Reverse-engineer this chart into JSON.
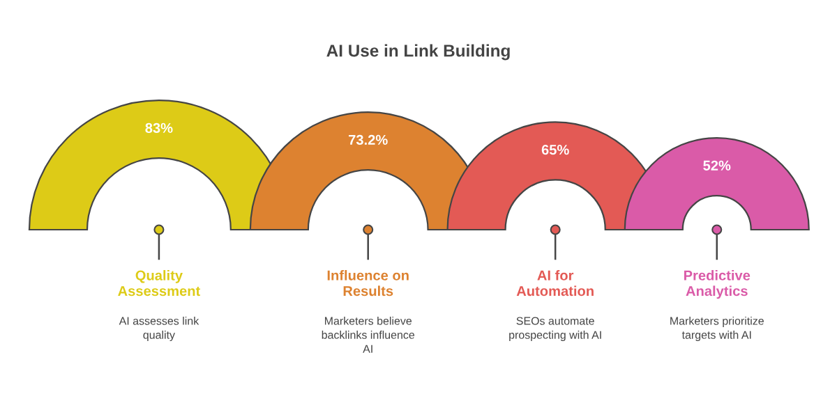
{
  "chart_data": {
    "type": "other",
    "title": "AI Use in Link Building",
    "categories": [
      "Quality\nAssessment",
      "Influence on\nResults",
      "AI for\nAutomation",
      "Predictive\nAnalytics"
    ],
    "values": [
      83,
      73.2,
      65,
      52
    ],
    "value_labels": [
      "83%",
      "73.2%",
      "65%",
      "52%"
    ],
    "colors": [
      "#ddcb17",
      "#dd8230",
      "#e35a55",
      "#da5ba8"
    ],
    "annotations": [
      "AI assesses link\nquality",
      "Marketers believe\nbacklinks influence\nAI",
      "SEOs automate\nprospecting with AI",
      "Marketers prioritize\ntargets with AI"
    ]
  }
}
